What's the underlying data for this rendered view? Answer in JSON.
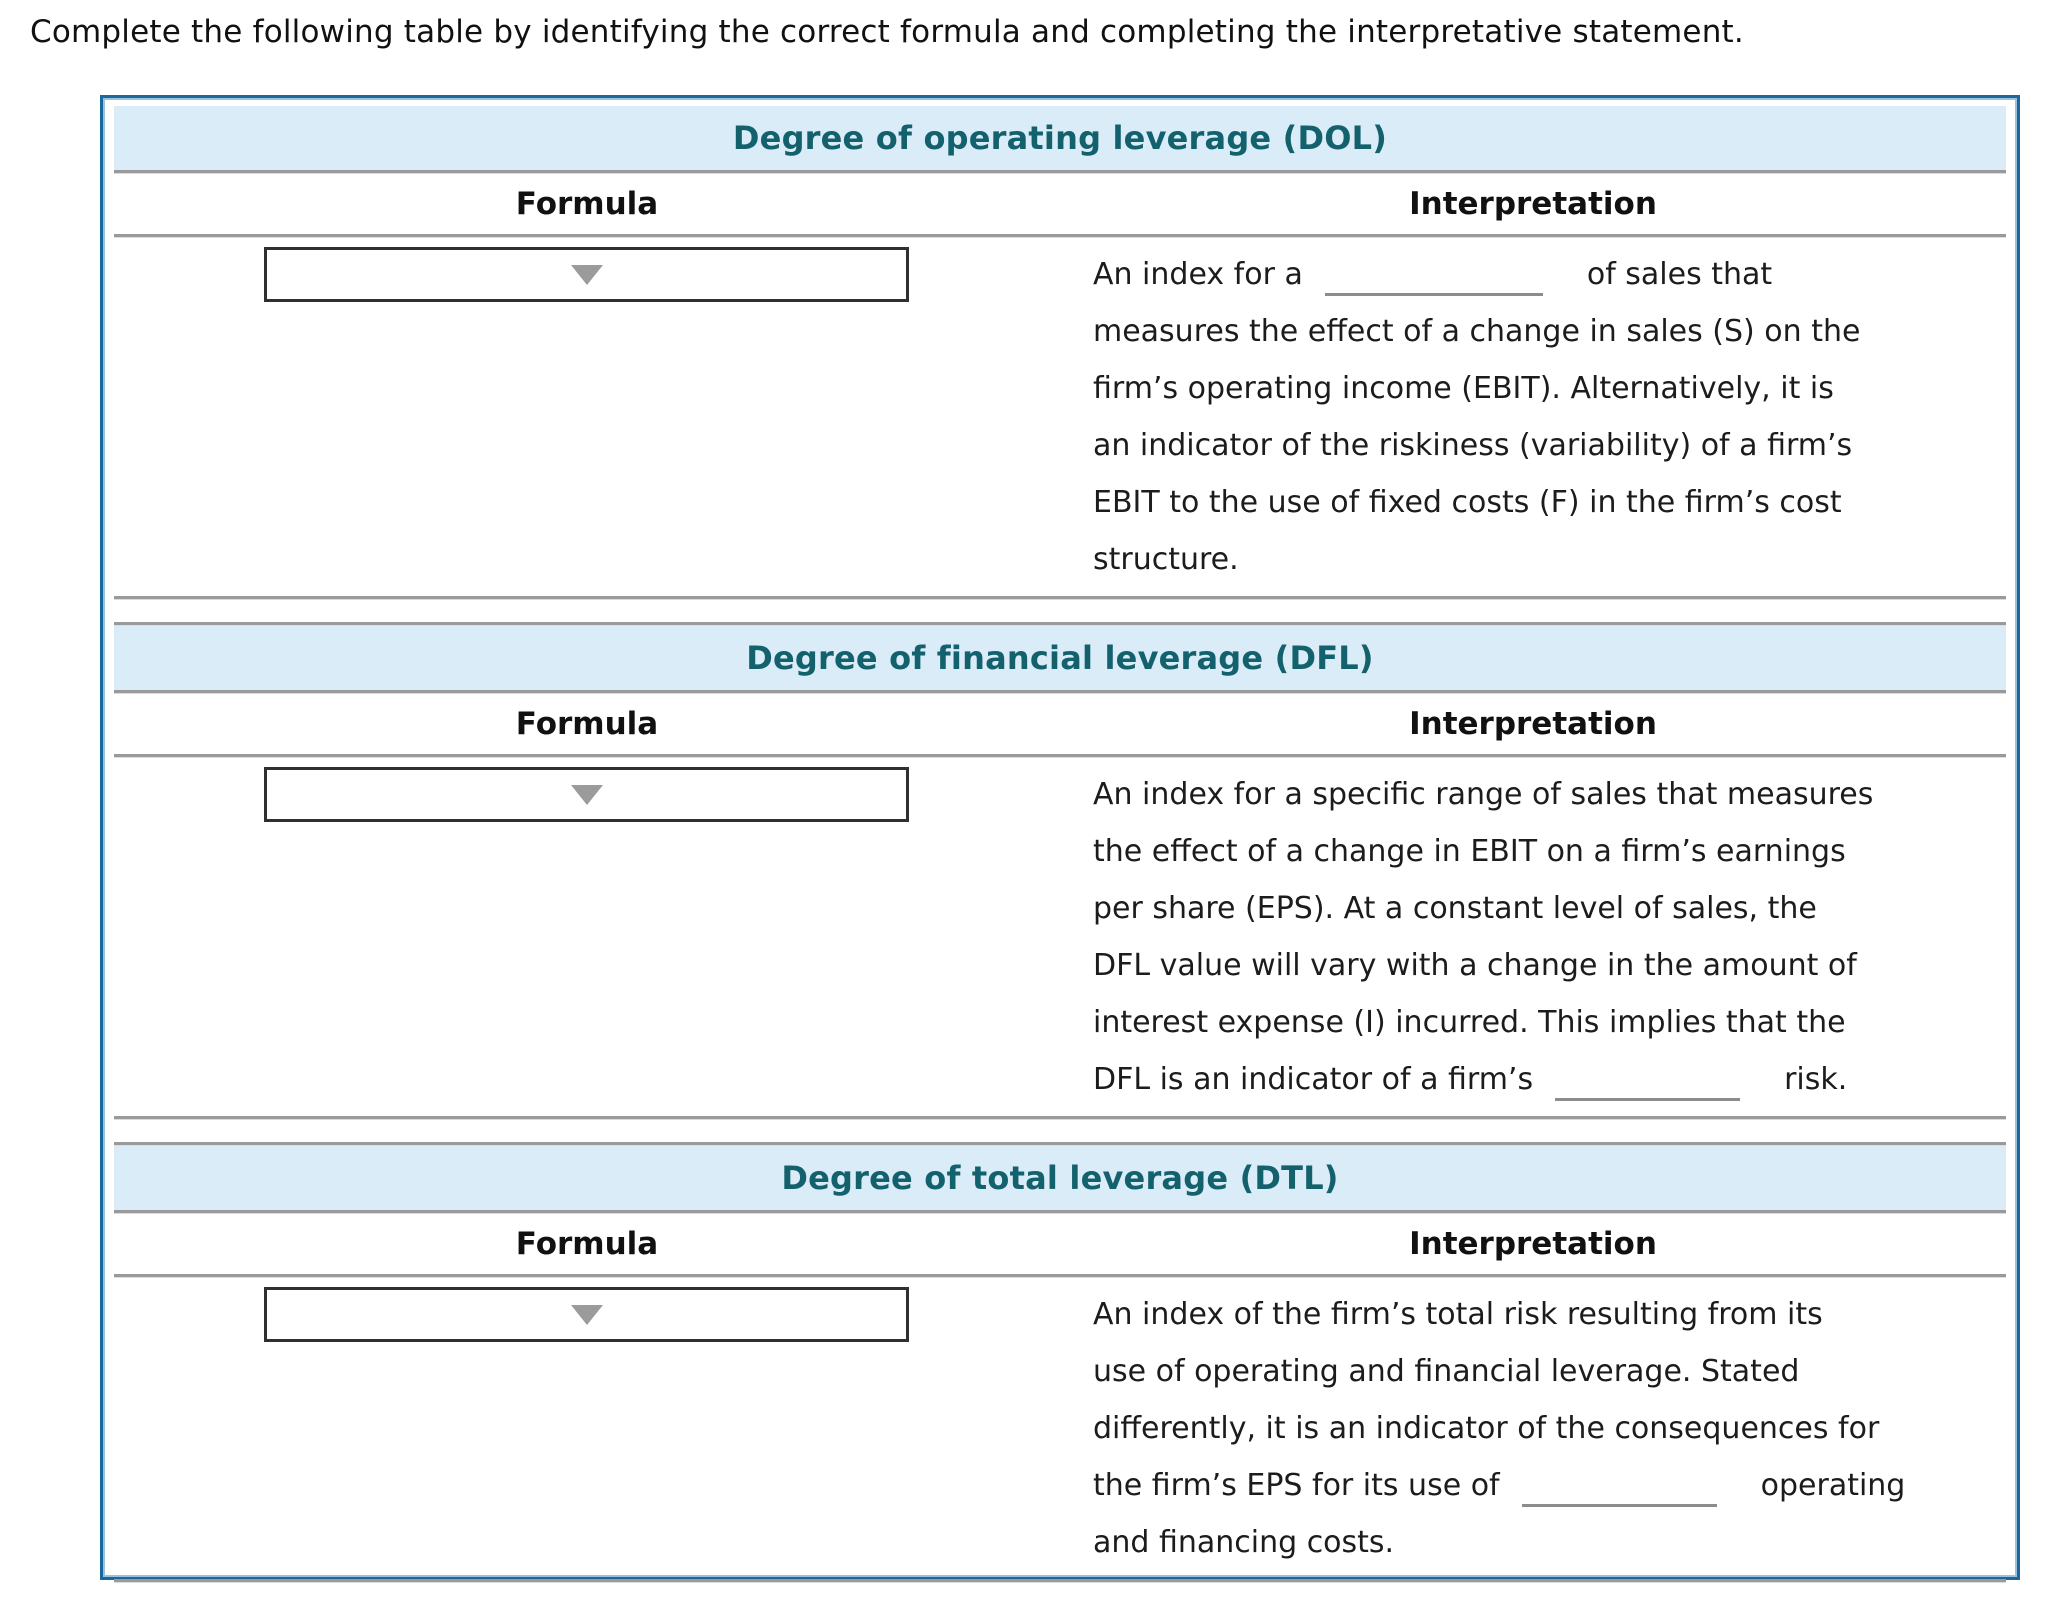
{
  "instruction": "Complete the following table by identifying the correct formula and completing the interpretative statement.",
  "colors": {
    "panel_border": "#1a699e",
    "header_band_bg": "#d9ecf7",
    "header_band_text": "#14616e",
    "rule_gray": "#9a9a9a",
    "dropdown_border": "#303030",
    "dropdown_arrow": "#9b9b9b",
    "blank_underline": "#8c8c8c"
  },
  "icons": {
    "dropdown_arrow": "down-triangle"
  },
  "sections": [
    {
      "title": "Degree of operating leverage (DOL)",
      "formula_label": "Formula",
      "interpretation_label": "Interpretation",
      "formula_value": "",
      "lines": [
        {
          "pre": "An index for a",
          "blank": true,
          "post": "of sales that"
        },
        {
          "pre": "measures the effect of a change in sales (S) on the"
        },
        {
          "pre": "firm’s operating income (EBIT). Alternatively, it is"
        },
        {
          "pre": "an indicator of the riskiness (variability) of a firm’s"
        },
        {
          "pre": "EBIT to the use of fixed costs (F) in the firm’s cost"
        },
        {
          "pre": "structure."
        }
      ]
    },
    {
      "title": "Degree of financial leverage (DFL)",
      "formula_label": "Formula",
      "interpretation_label": "Interpretation",
      "formula_value": "",
      "lines": [
        {
          "pre": "An index for a specific range of sales that measures"
        },
        {
          "pre": "the effect of a change in EBIT on a firm’s earnings"
        },
        {
          "pre": "per share (EPS). At a constant level of sales, the"
        },
        {
          "pre": "DFL value will vary with a change in the amount of"
        },
        {
          "pre": "interest expense (I) incurred. This implies that the"
        },
        {
          "pre": "DFL is an indicator of a firm’s",
          "blank": true,
          "post": "risk."
        }
      ]
    },
    {
      "title": "Degree of total leverage (DTL)",
      "formula_label": "Formula",
      "interpretation_label": "Interpretation",
      "formula_value": "",
      "lines": [
        {
          "pre": "An index of the firm’s total risk resulting from its"
        },
        {
          "pre": "use of operating and financial leverage. Stated"
        },
        {
          "pre": "differently, it is an indicator of the consequences for"
        },
        {
          "pre": "the firm’s EPS for its use of",
          "blank": true,
          "post": "operating"
        },
        {
          "pre": "and financing costs."
        }
      ]
    }
  ]
}
